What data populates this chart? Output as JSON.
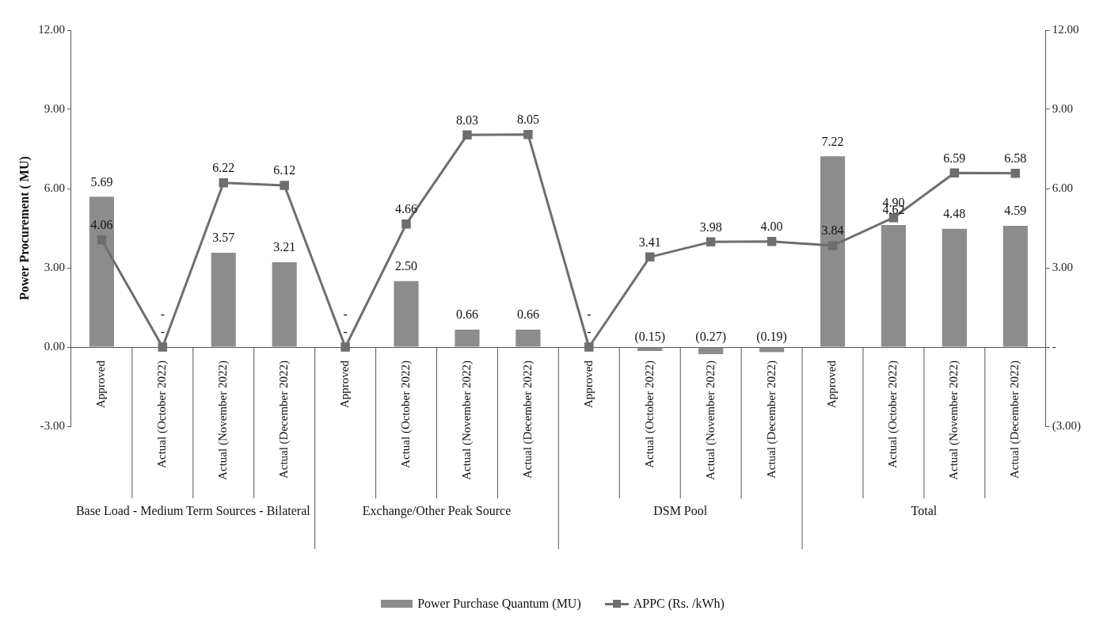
{
  "chart_data": {
    "type": "bar",
    "ylabel": "Power Procurement ( MU)",
    "categories": [
      "Approved",
      "Actual (October 2022)",
      "Actual (November 2022)",
      "Actual (December 2022)",
      "Approved",
      "Actual (October 2022)",
      "Actual (November 2022)",
      "Actual (December 2022)",
      "Approved",
      "Actual (October 2022)",
      "Actual (November 2022)",
      "Actual (December 2022)",
      "Approved",
      "Actual (October 2022)",
      "Actual (November 2022)",
      "Actual (December 2022)"
    ],
    "series": [
      {
        "name": "Power Purchase Quantum (MU)",
        "color": "#8c8c8c",
        "values": [
          5.69,
          0,
          3.57,
          3.21,
          0,
          2.5,
          0.66,
          0.66,
          0,
          -0.15,
          -0.27,
          -0.19,
          7.22,
          4.62,
          4.48,
          4.59
        ],
        "value_labels": [
          "5.69",
          "-",
          "3.57",
          "3.21",
          "-",
          "2.50",
          "0.66",
          "0.66",
          "-",
          "(0.15)",
          "(0.27)",
          "(0.19)",
          "7.22",
          "4.62",
          "4.48",
          "4.59"
        ]
      },
      {
        "name": "APPC (Rs. /kWh)",
        "type": "line",
        "color": "#6e6e6e",
        "values": [
          4.06,
          0,
          6.22,
          6.12,
          0,
          4.66,
          8.03,
          8.05,
          0,
          3.41,
          3.98,
          4.0,
          3.84,
          4.9,
          6.59,
          6.58
        ],
        "value_labels": [
          "4.06",
          "-",
          "6.22",
          "6.12",
          "-",
          "4.66",
          "8.03",
          "8.05",
          "-",
          "3.41",
          "3.98",
          "4.00",
          "3.84",
          "4.90",
          "6.59",
          "6.58"
        ]
      }
    ],
    "ylim": [
      -3,
      12
    ],
    "yticks": [
      {
        "value": 12,
        "label": "12.00"
      },
      {
        "value": 9,
        "label": "9.00"
      },
      {
        "value": 6,
        "label": "6.00"
      },
      {
        "value": 3,
        "label": "3.00"
      },
      {
        "value": 0,
        "label": "0.00"
      },
      {
        "value": -3,
        "label": "-3.00"
      }
    ],
    "y2lim": [
      -3,
      12
    ],
    "y2ticks": [
      {
        "value": 12,
        "label": "12.00"
      },
      {
        "value": 9,
        "label": "9.00"
      },
      {
        "value": 6,
        "label": "6.00"
      },
      {
        "value": 3,
        "label": "3.00"
      },
      {
        "value": 0,
        "label": "-"
      },
      {
        "value": -3,
        "label": "(3.00)"
      }
    ],
    "annotations": [
      "Base Load - Medium Term Sources - Bilateral",
      "Exchange/Other Peak Source",
      "DSM Pool",
      "Total"
    ],
    "legend": "bottom",
    "marker": "square",
    "line_style": "solid"
  }
}
